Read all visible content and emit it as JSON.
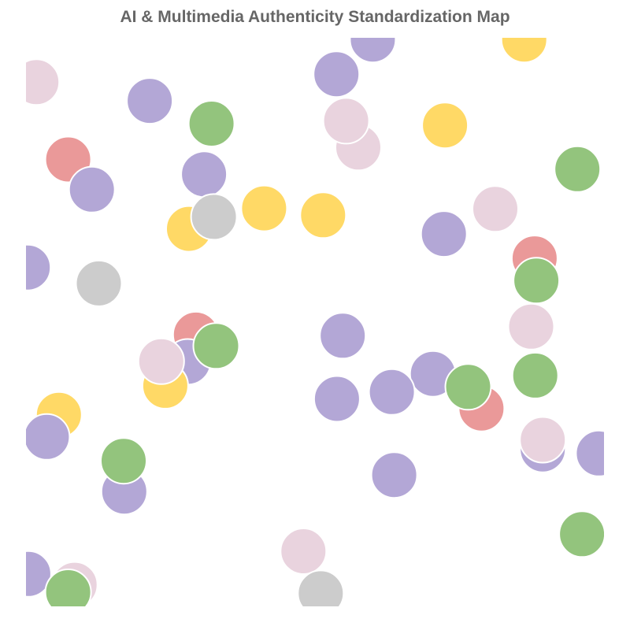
{
  "chart_data": {
    "type": "scatter",
    "title": "AI & Multimedia Authenticity Standardization Map",
    "xlim": [
      0,
      100
    ],
    "ylim": [
      0,
      100
    ],
    "grid": false,
    "legend": "none",
    "colors": {
      "purple": "#b3a7d6",
      "pink": "#e9d3de",
      "green": "#93c47d",
      "yellow": "#ffd966",
      "red": "#ea9999",
      "gray": "#cccccc"
    },
    "points": [
      {
        "x": 60.0,
        "y": 99.7,
        "color": "purple"
      },
      {
        "x": 86.2,
        "y": 99.7,
        "color": "yellow"
      },
      {
        "x": 1.8,
        "y": 92.2,
        "color": "pink"
      },
      {
        "x": 21.4,
        "y": 88.9,
        "color": "purple"
      },
      {
        "x": 32.1,
        "y": 84.9,
        "color": "green"
      },
      {
        "x": 53.7,
        "y": 93.6,
        "color": "purple"
      },
      {
        "x": 57.5,
        "y": 80.7,
        "color": "pink"
      },
      {
        "x": 55.4,
        "y": 85.4,
        "color": "pink"
      },
      {
        "x": 72.5,
        "y": 84.6,
        "color": "yellow"
      },
      {
        "x": 7.3,
        "y": 78.6,
        "color": "red"
      },
      {
        "x": 11.4,
        "y": 73.3,
        "color": "purple"
      },
      {
        "x": 30.8,
        "y": 76.0,
        "color": "purple"
      },
      {
        "x": 95.4,
        "y": 76.9,
        "color": "green"
      },
      {
        "x": 41.2,
        "y": 70.0,
        "color": "yellow"
      },
      {
        "x": 51.4,
        "y": 68.8,
        "color": "yellow"
      },
      {
        "x": 28.2,
        "y": 66.4,
        "color": "yellow"
      },
      {
        "x": 32.5,
        "y": 68.5,
        "color": "gray"
      },
      {
        "x": 81.2,
        "y": 69.9,
        "color": "pink"
      },
      {
        "x": 72.3,
        "y": 65.5,
        "color": "purple"
      },
      {
        "x": 88.0,
        "y": 61.2,
        "color": "red"
      },
      {
        "x": 88.3,
        "y": 57.3,
        "color": "green"
      },
      {
        "x": 0.3,
        "y": 59.6,
        "color": "purple"
      },
      {
        "x": 12.6,
        "y": 56.8,
        "color": "gray"
      },
      {
        "x": 29.4,
        "y": 47.8,
        "color": "red"
      },
      {
        "x": 28.0,
        "y": 43.0,
        "color": "purple"
      },
      {
        "x": 32.9,
        "y": 45.8,
        "color": "green"
      },
      {
        "x": 54.8,
        "y": 47.6,
        "color": "purple"
      },
      {
        "x": 87.4,
        "y": 49.2,
        "color": "pink"
      },
      {
        "x": 24.1,
        "y": 38.8,
        "color": "yellow"
      },
      {
        "x": 23.4,
        "y": 43.1,
        "color": "pink"
      },
      {
        "x": 88.1,
        "y": 40.6,
        "color": "green"
      },
      {
        "x": 70.4,
        "y": 40.9,
        "color": "purple"
      },
      {
        "x": 63.3,
        "y": 37.7,
        "color": "purple"
      },
      {
        "x": 53.8,
        "y": 36.5,
        "color": "purple"
      },
      {
        "x": 78.8,
        "y": 34.8,
        "color": "red"
      },
      {
        "x": 76.5,
        "y": 38.6,
        "color": "green"
      },
      {
        "x": 5.7,
        "y": 33.7,
        "color": "yellow"
      },
      {
        "x": 3.6,
        "y": 29.8,
        "color": "purple"
      },
      {
        "x": 89.4,
        "y": 27.6,
        "color": "purple"
      },
      {
        "x": 89.4,
        "y": 29.3,
        "color": "pink"
      },
      {
        "x": 99.1,
        "y": 26.9,
        "color": "purple"
      },
      {
        "x": 17.0,
        "y": 20.2,
        "color": "purple"
      },
      {
        "x": 16.9,
        "y": 25.6,
        "color": "green"
      },
      {
        "x": 63.7,
        "y": 23.1,
        "color": "purple"
      },
      {
        "x": 96.2,
        "y": 12.7,
        "color": "green"
      },
      {
        "x": 48.0,
        "y": 9.7,
        "color": "pink"
      },
      {
        "x": 8.4,
        "y": 3.8,
        "color": "pink"
      },
      {
        "x": 0.4,
        "y": 5.7,
        "color": "purple"
      },
      {
        "x": 7.3,
        "y": 2.5,
        "color": "green"
      },
      {
        "x": 51.0,
        "y": 2.3,
        "color": "gray"
      }
    ]
  }
}
